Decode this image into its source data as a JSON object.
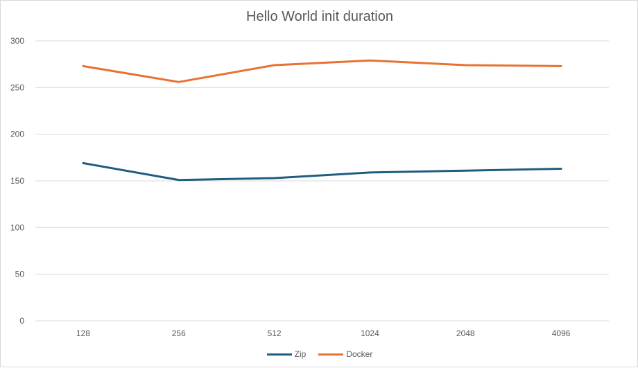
{
  "chart_data": {
    "type": "line",
    "title": "Hello World init duration",
    "xlabel": "",
    "ylabel": "",
    "categories": [
      "128",
      "256",
      "512",
      "1024",
      "2048",
      "4096"
    ],
    "ylim": [
      0,
      300
    ],
    "yticks": [
      0,
      50,
      100,
      150,
      200,
      250,
      300
    ],
    "grid": true,
    "legend_position": "bottom",
    "series": [
      {
        "name": "Zip",
        "color": "#1f5c80",
        "values": [
          169,
          151,
          153,
          159,
          161,
          163
        ]
      },
      {
        "name": "Docker",
        "color": "#e97132",
        "values": [
          273,
          256,
          274,
          279,
          274,
          273
        ]
      }
    ]
  }
}
